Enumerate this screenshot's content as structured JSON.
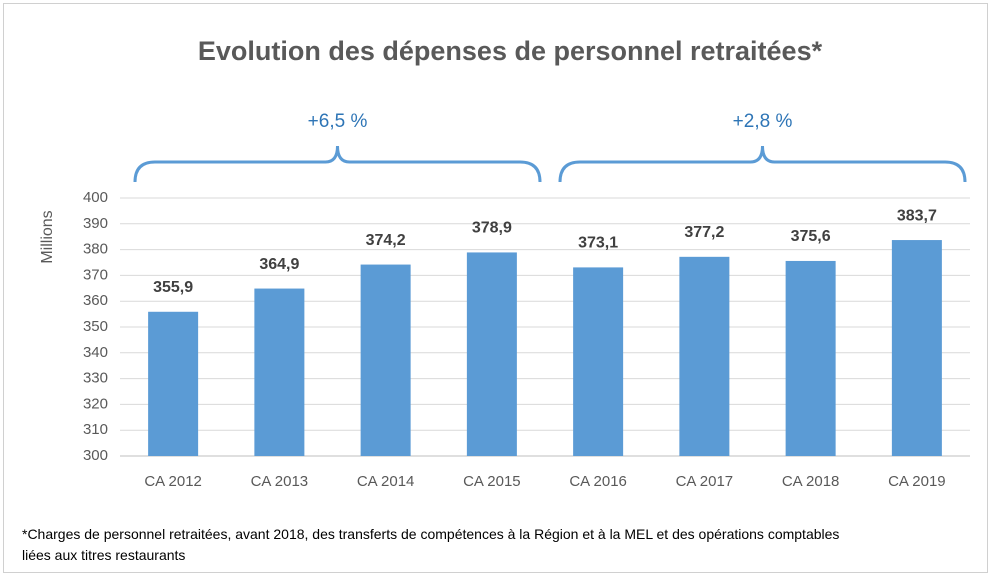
{
  "chart_data": {
    "type": "bar",
    "title": "Evolution des dépenses de personnel retraitées*",
    "ylabel": "Millions",
    "categories": [
      "CA 2012",
      "CA 2013",
      "CA 2014",
      "CA 2015",
      "CA 2016",
      "CA 2017",
      "CA 2018",
      "CA 2019"
    ],
    "values": [
      355.9,
      364.9,
      374.2,
      378.9,
      373.1,
      377.2,
      375.6,
      383.7
    ],
    "value_labels": [
      "355,9",
      "364,9",
      "374,2",
      "378,9",
      "373,1",
      "377,2",
      "375,6",
      "383,7"
    ],
    "color": "#5b9bd5",
    "ylim": [
      300,
      400
    ],
    "yticks": [
      300,
      310,
      320,
      330,
      340,
      350,
      360,
      370,
      380,
      390,
      400
    ],
    "grid": true,
    "annotations": [
      "+6,5 %",
      "+2,8 %"
    ],
    "note": [
      "*Charges de personnel retraitées, avant 2018, des transferts de compétences à la Région et à la MEL et des opérations comptables",
      "liées aux titres restaurants"
    ]
  }
}
